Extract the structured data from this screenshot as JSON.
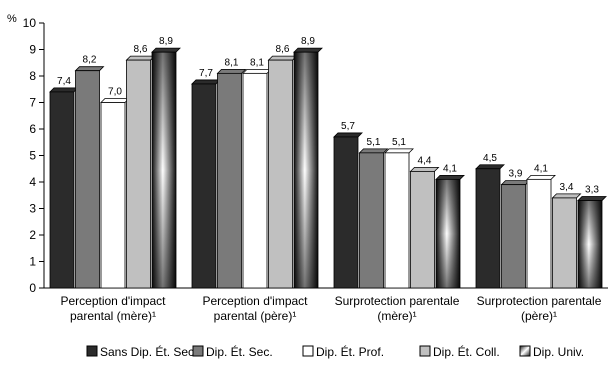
{
  "chart_data": {
    "type": "bar",
    "ylabel": "%",
    "ylim": [
      0,
      10
    ],
    "yticks": [
      0,
      1,
      2,
      3,
      4,
      5,
      6,
      7,
      8,
      9,
      10
    ],
    "grid": false,
    "legend_position": "bottom",
    "categories": [
      [
        "Perception d'impact",
        "parental (mère)¹"
      ],
      [
        "Perception d'impact",
        "parental (père)¹"
      ],
      [
        "Surprotection parentale",
        "(mère)¹"
      ],
      [
        "Surprotection parentale",
        "(père)¹"
      ]
    ],
    "series": [
      {
        "name": "Sans Dip. Ét. Sec.",
        "values": [
          7.4,
          7.7,
          5.7,
          4.5
        ],
        "labels": [
          "7,4",
          "7,7",
          "5,7",
          "4,5"
        ],
        "color": "#2b2b2b",
        "style": "solid"
      },
      {
        "name": "Dip. Ét. Sec.",
        "values": [
          8.2,
          8.1,
          5.1,
          3.9
        ],
        "labels": [
          "8,2",
          "8,1",
          "5,1",
          "3,9"
        ],
        "color": "#7a7a7a",
        "style": "solid"
      },
      {
        "name": "Dip. Ét. Prof.",
        "values": [
          7.0,
          8.1,
          5.1,
          4.1
        ],
        "labels": [
          "7,0",
          "8,1",
          "5,1",
          "4,1"
        ],
        "color": "#ffffff",
        "style": "solid"
      },
      {
        "name": "Dip. Ét. Coll.",
        "values": [
          8.6,
          8.6,
          4.4,
          3.4
        ],
        "labels": [
          "8,6",
          "8,6",
          "4,4",
          "3,4"
        ],
        "color": "#c0c0c0",
        "style": "solid"
      },
      {
        "name": "Dip. Univ.",
        "values": [
          8.9,
          8.9,
          4.1,
          3.3
        ],
        "labels": [
          "8,9",
          "8,9",
          "4,1",
          "3,3"
        ],
        "color": "#1a1a1a",
        "style": "gradient"
      }
    ]
  }
}
